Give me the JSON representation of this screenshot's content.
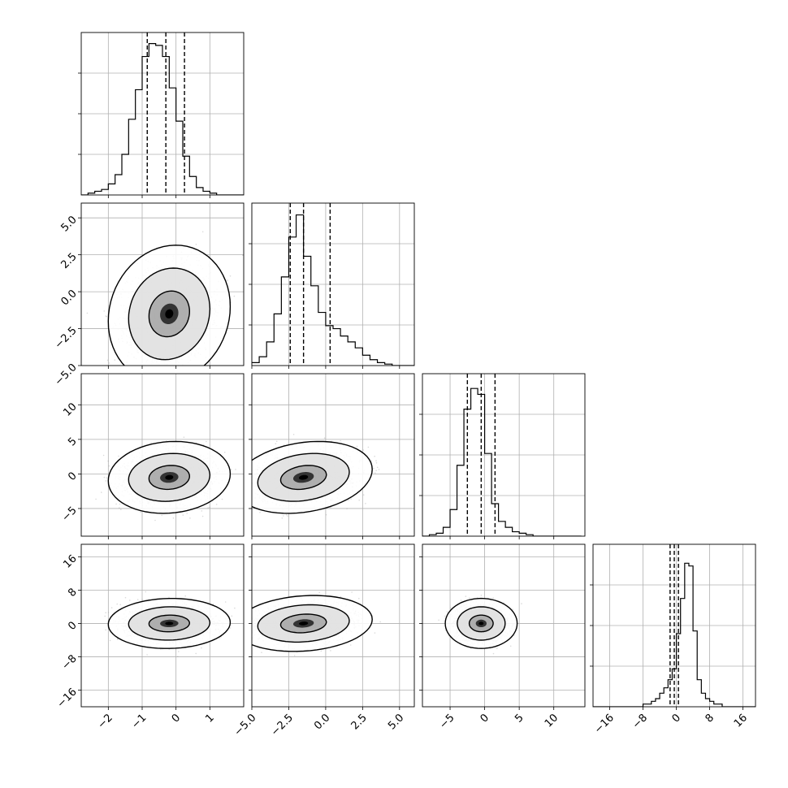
{
  "chart_data": {
    "type": "corner",
    "title": "",
    "grid": true,
    "parameters": [
      {
        "name": "",
        "range": [
          -2.8,
          2.0
        ],
        "ticks": [
          -2,
          -1,
          0,
          1
        ],
        "tick_labels": [
          "−2",
          "−1",
          "0",
          "1"
        ],
        "quantiles": [
          -0.85,
          -0.3,
          0.25
        ],
        "histogram": {
          "bin_start": -2.8,
          "bin_width": 0.2,
          "counts": [
            0,
            1,
            2,
            3,
            6,
            11,
            22,
            41,
            57,
            75,
            82,
            81,
            75,
            58,
            40,
            21,
            10,
            4,
            2,
            1,
            0,
            0,
            0,
            0
          ],
          "ymax": 88
        }
      },
      {
        "name": "",
        "range": [
          -5.0,
          6.0
        ],
        "ticks": [
          -5.0,
          -2.5,
          0.0,
          2.5,
          5.0
        ],
        "tick_labels": [
          "−5.0",
          "−2.5",
          "0.0",
          "2.5",
          "5.0"
        ],
        "quantiles": [
          -2.4,
          -1.5,
          0.3
        ],
        "histogram": {
          "bin_start": -5.0,
          "bin_width": 0.5,
          "counts": [
            2,
            6,
            16,
            35,
            60,
            87,
            102,
            74,
            54,
            36,
            27,
            25,
            20,
            16,
            12,
            7,
            4,
            2,
            1,
            0,
            0,
            0
          ],
          "ymax": 110
        }
      },
      {
        "name": "",
        "range": [
          -9.0,
          14.5
        ],
        "ticks": [
          -5,
          0,
          5,
          10
        ],
        "tick_labels": [
          "−5",
          "0",
          "5",
          "10"
        ],
        "quantiles": [
          -2.5,
          -0.5,
          1.5
        ],
        "histogram": {
          "bin_start": -9.0,
          "bin_width": 1.0,
          "counts": [
            0,
            1,
            2,
            6,
            18,
            48,
            86,
            100,
            96,
            56,
            22,
            10,
            6,
            3,
            2,
            1,
            0,
            0,
            0,
            0,
            0,
            0,
            0
          ],
          "ymax": 110
        }
      },
      {
        "name": "",
        "range": [
          -20.0,
          19.0
        ],
        "ticks": [
          -16,
          -8,
          0,
          8,
          16
        ],
        "tick_labels": [
          "−16",
          "−8",
          "0",
          "8",
          "16"
        ],
        "quantiles": [
          -1.5,
          -0.5,
          0.5
        ],
        "histogram": {
          "bin_start": -20.0,
          "bin_width": 1.0,
          "counts": [
            0,
            0,
            0,
            0,
            0,
            0,
            0,
            0,
            0,
            0,
            0,
            0,
            1,
            1,
            2,
            3,
            5,
            7,
            10,
            14,
            27,
            40,
            53,
            52,
            28,
            10,
            5,
            3,
            2,
            1,
            1,
            0,
            0,
            0,
            0,
            0,
            0,
            0,
            0
          ],
          "ymax": 60
        }
      }
    ],
    "pairs": [
      {
        "x": 0,
        "y": 1,
        "cov": [
          [
            0.36,
            0.1
          ],
          [
            0.1,
            2.4
          ]
        ],
        "center": [
          -0.2,
          -1.5
        ],
        "n_points": 2600
      },
      {
        "x": 0,
        "y": 2,
        "cov": [
          [
            0.36,
            0.1
          ],
          [
            0.1,
            3.0
          ]
        ],
        "center": [
          -0.2,
          -0.5
        ],
        "n_points": 2600
      },
      {
        "x": 1,
        "y": 2,
        "cov": [
          [
            2.4,
            0.6
          ],
          [
            0.6,
            3.0
          ]
        ],
        "center": [
          -1.5,
          -0.5
        ],
        "n_points": 2600
      },
      {
        "x": 0,
        "y": 3,
        "cov": [
          [
            0.36,
            0.05
          ],
          [
            0.05,
            4.0
          ]
        ],
        "center": [
          -0.2,
          0.0
        ],
        "n_points": 2600
      },
      {
        "x": 1,
        "y": 3,
        "cov": [
          [
            2.4,
            0.5
          ],
          [
            0.5,
            5.0
          ]
        ],
        "center": [
          -1.5,
          0.0
        ],
        "n_points": 2600
      },
      {
        "x": 2,
        "y": 3,
        "cov": [
          [
            3.0,
            0.0
          ],
          [
            0.0,
            4.0
          ]
        ],
        "center": [
          -0.5,
          0.0
        ],
        "n_points": 2600
      }
    ],
    "contour_levels": [
      0.393,
      0.865,
      0.989
    ]
  }
}
